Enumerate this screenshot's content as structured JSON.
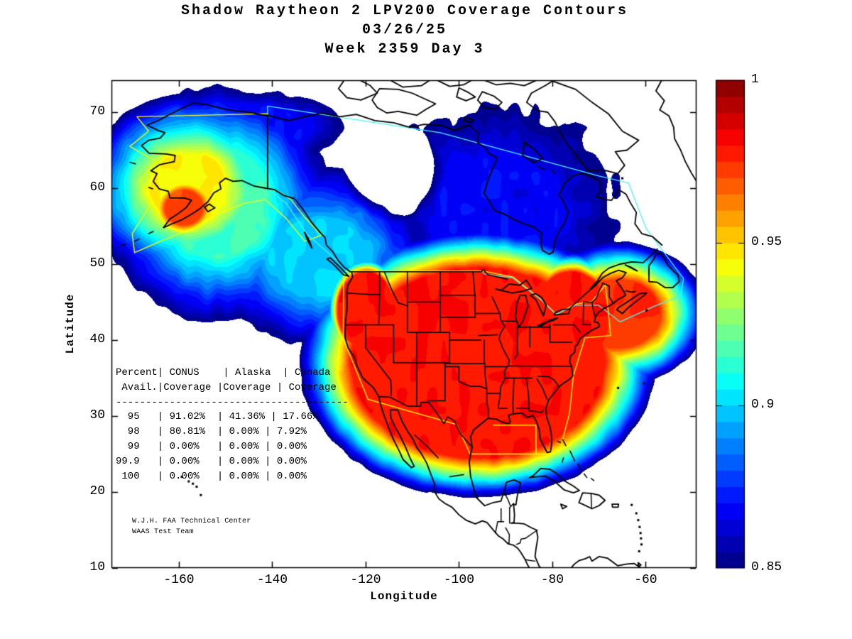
{
  "figure": {
    "title": "Shadow Raytheon 2 LPV200 Coverage Contours",
    "date": "03/26/25",
    "week_day": "Week 2359 Day 3",
    "background_color": "#ffffff"
  },
  "axes": {
    "xlabel": "Longitude",
    "ylabel": "Latitude",
    "x_tick_labels": [
      "-160",
      "-140",
      "-120",
      "-100",
      "-80",
      "-60"
    ],
    "y_tick_labels": [
      "70",
      "60",
      "50",
      "40",
      "30",
      "20",
      "10"
    ]
  },
  "colorbar": {
    "tick_labels": [
      "1",
      "0.95",
      "0.9",
      "0.85"
    ],
    "tick_values": [
      1,
      0.95,
      0.9,
      0.85
    ]
  },
  "coverage_table": {
    "display_lines": [
      "Percent| CONUS    | Alaska  | Canada",
      " Avail.|Coverage |Coverage | Coverage",
      "---------------------------------------",
      "  95   | 91.02%  | 41.36% | 17.66%",
      "  98   | 80.81%  | 0.00% | 7.92%",
      "  99   | 0.00%   | 0.00% | 0.00%",
      "99.9   | 0.00%   | 0.00% | 0.00%",
      " 100   | 0.00%   | 0.00% | 0.00%"
    ],
    "columns": [
      "Percent Avail.",
      "CONUS Coverage",
      "Alaska Coverage",
      "Canada Coverage"
    ],
    "rows": [
      {
        "avail": "95",
        "conus": "91.02%",
        "alaska": "41.36%",
        "canada": "17.66%"
      },
      {
        "avail": "98",
        "conus": "80.81%",
        "alaska": "0.00%",
        "canada": "7.92%"
      },
      {
        "avail": "99",
        "conus": "0.00%",
        "alaska": "0.00%",
        "canada": "0.00%"
      },
      {
        "avail": "99.9",
        "conus": "0.00%",
        "alaska": "0.00%",
        "canada": "0.00%"
      },
      {
        "avail": "100",
        "conus": "0.00%",
        "alaska": "0.00%",
        "canada": "0.00%"
      }
    ]
  },
  "footer": {
    "line1": "W.J.H. FAA Technical Center",
    "line2": "WAAS Test Team"
  },
  "chart_data": {
    "type": "heatmap",
    "subtype": "filled_contour_map",
    "title": "Shadow Raytheon 2 LPV200 Coverage Contours",
    "subtitle_date": "03/26/25",
    "subtitle_week": "Week 2359 Day 3",
    "quantity": "LPV200 availability fraction",
    "xlabel": "Longitude",
    "ylabel": "Latitude",
    "xlim": [
      -174.5,
      -49.1
    ],
    "ylim": [
      10,
      74.2
    ],
    "x_ticks": [
      -160,
      -140,
      -120,
      -100,
      -80,
      -60
    ],
    "y_ticks": [
      10,
      20,
      30,
      40,
      50,
      60,
      70
    ],
    "grid": false,
    "colorbar": {
      "min": 0.85,
      "max": 1.0,
      "band_step": 0.005,
      "colormap": "jet",
      "ticks": [
        0.85,
        0.9,
        0.95,
        1
      ],
      "position": "right"
    },
    "coverage_stats": {
      "availability_percent": [
        95,
        98,
        99,
        99.9,
        100
      ],
      "conus_coverage_percent": [
        91.02,
        80.81,
        0.0,
        0.0,
        0.0
      ],
      "alaska_coverage_percent": [
        41.36,
        0.0,
        0.0,
        0.0,
        0.0
      ],
      "canada_coverage_percent": [
        17.66,
        7.92,
        0.0,
        0.0,
        0.0
      ]
    },
    "regions_summary": [
      {
        "name": "CONUS and eastern seaboard",
        "value": "saturated red, availability ~0.97-0.98"
      },
      {
        "name": "southwest Alaska core",
        "value": "orange-red, availability ~0.97"
      },
      {
        "name": "Pacific / western Canada bridge",
        "value": "cyan-green, ~0.89-0.92"
      },
      {
        "name": "north-central Canada",
        "value": "dark blue ~0.85-0.87 with white hole below 0.85"
      },
      {
        "name": "outside stadium-shaped footprint",
        "value": "white, below 0.85"
      }
    ],
    "field_model": {
      "comment": "plateau-cone approximation of the plotted availability field",
      "features": [
        [
          -96,
          37,
          27,
          12.5,
          0.979,
          0.45
        ],
        [
          -120,
          44,
          6,
          5,
          0.979,
          0.45
        ],
        [
          -76,
          43,
          8,
          6,
          0.979,
          0.5
        ],
        [
          -66,
          43.5,
          9,
          4.5,
          0.975,
          1.2
        ],
        [
          -159,
          57.5,
          4,
          2.3,
          0.972,
          1.6
        ],
        [
          -158,
          60,
          8,
          4.5,
          0.945,
          2.0
        ],
        [
          -152,
          58,
          11,
          7,
          0.915,
          1.4
        ],
        [
          -130,
          51,
          10,
          5,
          0.9,
          1.6
        ],
        [
          -92,
          57,
          13,
          7,
          0.868,
          1.5
        ],
        [
          -148,
          68,
          14,
          3,
          0.87,
          1.0
        ]
      ],
      "depression": [
        -114,
        62,
        11,
        6.5,
        0.035
      ],
      "floor": 0.85
    },
    "overlays": {
      "conus_boundary": {
        "color": "#ffff00",
        "points": [
          [
            -124.7,
            48.4
          ],
          [
            -124.8,
            40.2
          ],
          [
            -119.5,
            32.2
          ],
          [
            -111.6,
            30.8
          ],
          [
            -100.5,
            28.9
          ],
          [
            -97.6,
            25.0
          ],
          [
            -78.6,
            25.0
          ],
          [
            -76.3,
            30.4
          ],
          [
            -75.5,
            35.3
          ],
          [
            -73.0,
            40.3
          ],
          [
            -67.5,
            40.6
          ],
          [
            -68.6,
            47.3
          ],
          [
            -71.5,
            45.1
          ],
          [
            -75.2,
            44.7
          ],
          [
            -79.1,
            43.4
          ],
          [
            -82.7,
            45.5
          ],
          [
            -88.4,
            48.3
          ],
          [
            -95.0,
            49.1
          ],
          [
            -124.2,
            49.1
          ]
        ],
        "closed": true
      },
      "conus_boundary_gulf_notch": {
        "color": "#ffff00",
        "points": [
          [
            -92.6,
            28.8
          ],
          [
            -83.5,
            28.8
          ],
          [
            -83.5,
            25.0
          ]
        ],
        "closed": false
      },
      "alaska_boundary": {
        "color": "#ffff00",
        "points": [
          [
            -141,
            69.8
          ],
          [
            -169,
            69.4
          ],
          [
            -166.5,
            67.5
          ],
          [
            -170.5,
            65.5
          ],
          [
            -165,
            63.5
          ],
          [
            -168.5,
            61
          ],
          [
            -166,
            58
          ],
          [
            -170,
            54
          ],
          [
            -169.5,
            51.5
          ],
          [
            -164,
            53
          ],
          [
            -158,
            54.5
          ],
          [
            -152,
            56.5
          ],
          [
            -146,
            58
          ],
          [
            -141.5,
            58.5
          ],
          [
            -137,
            56
          ],
          [
            -133,
            53
          ],
          [
            -129.5,
            53.8
          ],
          [
            -133.5,
            56.5
          ],
          [
            -136,
            58.5
          ],
          [
            -138.5,
            59.5
          ],
          [
            -141,
            60
          ]
        ],
        "closed": true
      },
      "canada_boundary": {
        "color": "#50f0f0",
        "points": [
          [
            -123.3,
            48.9
          ],
          [
            -132.5,
            53.9
          ],
          [
            -137,
            58
          ],
          [
            -141,
            60
          ],
          [
            -141,
            70.8
          ],
          [
            -104,
            67.3
          ],
          [
            -70,
            61.6
          ],
          [
            -63.7,
            60.7
          ],
          [
            -59.9,
            54.7
          ],
          [
            -51.9,
            48.1
          ],
          [
            -52.5,
            45.8
          ],
          [
            -58,
            44.5
          ],
          [
            -65.5,
            42.4
          ],
          [
            -70.1,
            44.6
          ],
          [
            -75,
            44.6
          ],
          [
            -79.2,
            43.4
          ],
          [
            -82.6,
            45.4
          ],
          [
            -88.5,
            48.2
          ],
          [
            -94.5,
            48.7
          ],
          [
            -95.2,
            49
          ],
          [
            -123.3,
            49
          ]
        ],
        "closed": true
      }
    }
  }
}
